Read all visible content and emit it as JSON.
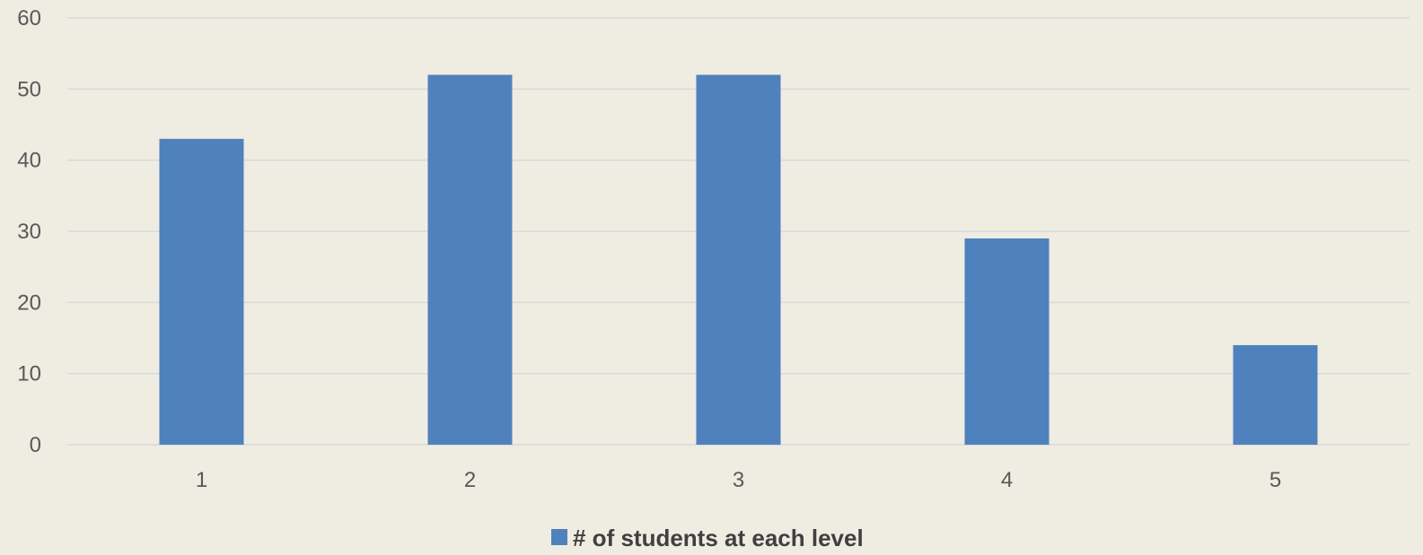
{
  "chart_data": {
    "type": "bar",
    "categories": [
      "1",
      "2",
      "3",
      "4",
      "5"
    ],
    "series": [
      {
        "name": "# of students at each level",
        "values": [
          43,
          52,
          52,
          29,
          14
        ]
      }
    ],
    "title": "",
    "xlabel": "",
    "ylabel": "",
    "ylim": [
      0,
      60
    ],
    "yticks": [
      0,
      10,
      20,
      30,
      40,
      50,
      60
    ],
    "grid": true,
    "legend": "bottom-center"
  },
  "colors": {
    "background": "#efece2",
    "bar": "#4f81bd",
    "grid": "#d9d9d9",
    "tick_text": "#595959",
    "legend_text": "#404040"
  }
}
